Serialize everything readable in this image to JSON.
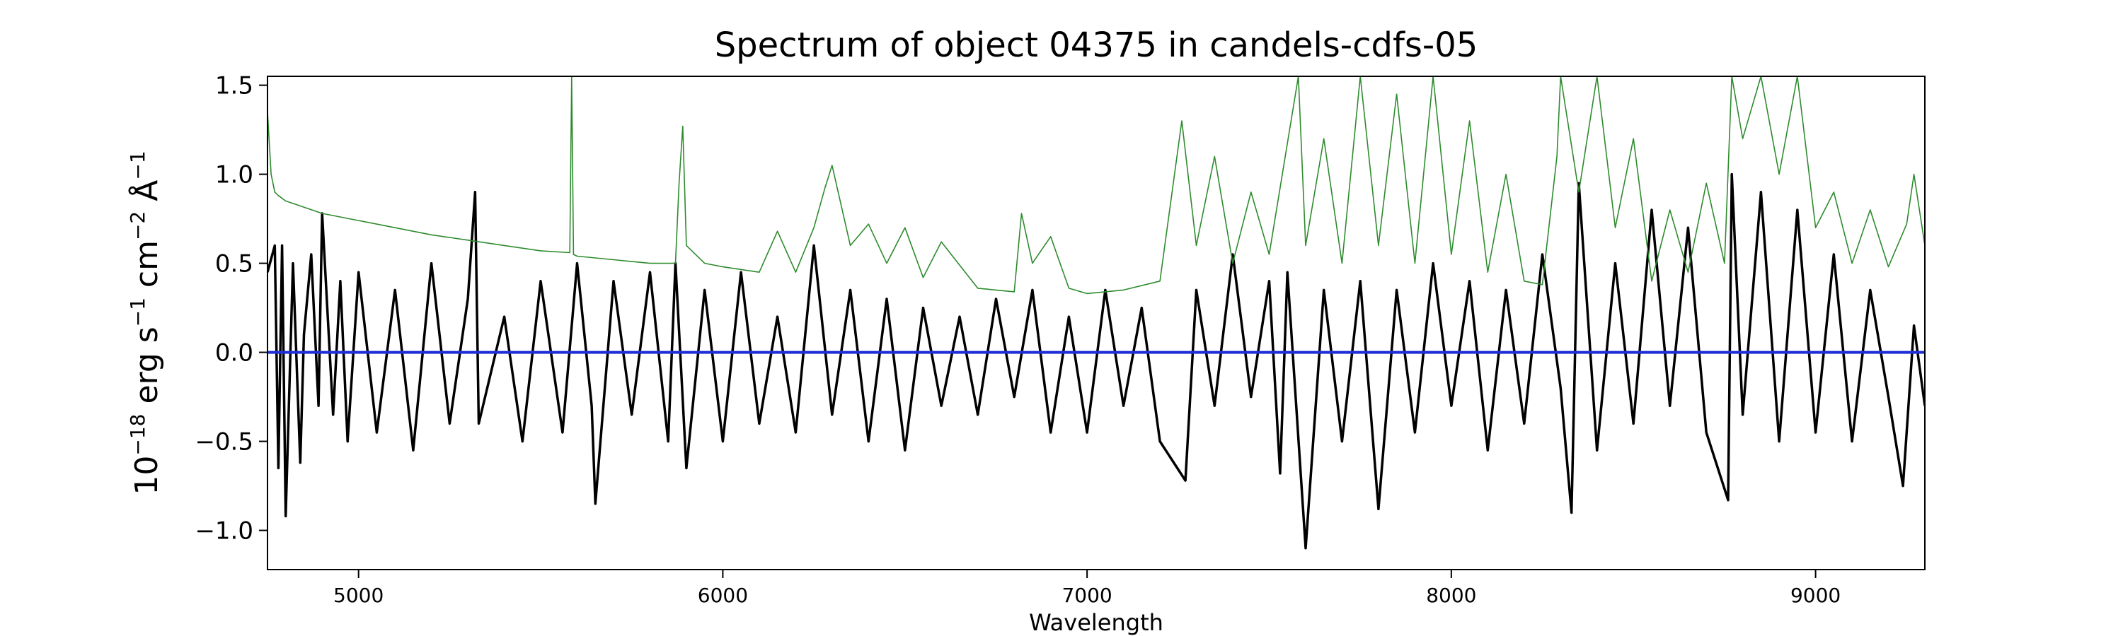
{
  "chart_data": {
    "type": "line",
    "title": "Spectrum of object 04375 in candels-cdfs-05",
    "xlabel": "Wavelength",
    "ylabel": {
      "base": "10",
      "exponent": "−18",
      "text1": " erg s",
      "exp1": "−1",
      "text2": " cm",
      "exp2": "−2",
      "text3": " Å",
      "exp3": "−1"
    },
    "xlim": [
      4750,
      9300
    ],
    "ylim": [
      -1.22,
      1.55
    ],
    "xticks": [
      5000,
      6000,
      7000,
      8000,
      9000
    ],
    "xtick_labels": [
      "5000",
      "6000",
      "7000",
      "8000",
      "9000"
    ],
    "yticks": [
      -1.0,
      -0.5,
      0.0,
      0.5,
      1.0,
      1.5
    ],
    "ytick_labels": [
      "−1.0",
      "−0.5",
      "0.0",
      "0.5",
      "1.0",
      "1.5"
    ],
    "grid": false,
    "series": [
      {
        "role": "flux",
        "color": "#000000",
        "x": [
          4750,
          4770,
          4780,
          4790,
          4800,
          4820,
          4840,
          4850,
          4870,
          4890,
          4900,
          4930,
          4950,
          4970,
          5000,
          5050,
          5100,
          5150,
          5200,
          5250,
          5300,
          5320,
          5330,
          5400,
          5450,
          5500,
          5560,
          5600,
          5640,
          5650,
          5700,
          5750,
          5800,
          5850,
          5870,
          5900,
          5950,
          6000,
          6050,
          6100,
          6150,
          6200,
          6250,
          6300,
          6350,
          6400,
          6450,
          6500,
          6550,
          6600,
          6650,
          6700,
          6750,
          6800,
          6850,
          6900,
          6950,
          7000,
          7050,
          7100,
          7150,
          7200,
          7270,
          7300,
          7350,
          7400,
          7450,
          7500,
          7530,
          7550,
          7600,
          7650,
          7700,
          7750,
          7800,
          7850,
          7900,
          7950,
          8000,
          8050,
          8100,
          8150,
          8200,
          8250,
          8300,
          8330,
          8350,
          8400,
          8450,
          8500,
          8550,
          8600,
          8650,
          8700,
          8760,
          8770,
          8800,
          8850,
          8900,
          8950,
          9000,
          9050,
          9100,
          9150,
          9200,
          9240,
          9270,
          9300
        ],
        "y": [
          0.45,
          0.6,
          -0.65,
          0.6,
          -0.92,
          0.5,
          -0.62,
          0.1,
          0.55,
          -0.3,
          0.78,
          -0.35,
          0.4,
          -0.5,
          0.45,
          -0.45,
          0.35,
          -0.55,
          0.5,
          -0.4,
          0.3,
          0.9,
          -0.4,
          0.2,
          -0.5,
          0.4,
          -0.45,
          0.5,
          -0.3,
          -0.85,
          0.4,
          -0.35,
          0.45,
          -0.5,
          0.5,
          -0.65,
          0.35,
          -0.5,
          0.45,
          -0.4,
          0.2,
          -0.45,
          0.6,
          -0.35,
          0.35,
          -0.5,
          0.3,
          -0.55,
          0.25,
          -0.3,
          0.2,
          -0.35,
          0.3,
          -0.25,
          0.35,
          -0.45,
          0.2,
          -0.45,
          0.35,
          -0.3,
          0.25,
          -0.5,
          -0.72,
          0.35,
          -0.3,
          0.55,
          -0.25,
          0.4,
          -0.68,
          0.45,
          -1.1,
          0.35,
          -0.5,
          0.4,
          -0.88,
          0.35,
          -0.45,
          0.5,
          -0.3,
          0.4,
          -0.55,
          0.35,
          -0.4,
          0.55,
          -0.2,
          -0.9,
          0.95,
          -0.55,
          0.5,
          -0.4,
          0.8,
          -0.3,
          0.7,
          -0.45,
          -0.83,
          1.0,
          -0.35,
          0.9,
          -0.5,
          0.8,
          -0.45,
          0.55,
          -0.5,
          0.35,
          -0.25,
          -0.75,
          0.15,
          -0.3
        ]
      },
      {
        "role": "error",
        "color": "#2e8b2e",
        "x": [
          4750,
          4760,
          4770,
          4780,
          4800,
          4900,
          5000,
          5100,
          5200,
          5300,
          5400,
          5500,
          5580,
          5585,
          5590,
          5600,
          5700,
          5800,
          5870,
          5880,
          5890,
          5900,
          5950,
          6000,
          6100,
          6150,
          6200,
          6250,
          6280,
          6300,
          6350,
          6400,
          6450,
          6500,
          6550,
          6600,
          6700,
          6800,
          6820,
          6850,
          6900,
          6950,
          7000,
          7100,
          7200,
          7260,
          7300,
          7350,
          7400,
          7450,
          7500,
          7580,
          7600,
          7650,
          7700,
          7750,
          7800,
          7850,
          7900,
          7950,
          8000,
          8050,
          8100,
          8150,
          8200,
          8250,
          8290,
          8300,
          8350,
          8400,
          8450,
          8500,
          8550,
          8600,
          8650,
          8700,
          8750,
          8770,
          8800,
          8850,
          8900,
          8950,
          9000,
          9050,
          9100,
          9150,
          9200,
          9250,
          9270,
          9300
        ],
        "y": [
          1.35,
          1.0,
          0.9,
          0.88,
          0.85,
          0.78,
          0.74,
          0.7,
          0.66,
          0.63,
          0.6,
          0.57,
          0.56,
          1.55,
          0.55,
          0.54,
          0.52,
          0.5,
          0.5,
          0.95,
          1.27,
          0.6,
          0.5,
          0.48,
          0.45,
          0.68,
          0.45,
          0.7,
          0.92,
          1.05,
          0.6,
          0.72,
          0.5,
          0.7,
          0.42,
          0.62,
          0.36,
          0.34,
          0.78,
          0.5,
          0.65,
          0.36,
          0.33,
          0.35,
          0.4,
          1.3,
          0.6,
          1.1,
          0.5,
          0.9,
          0.55,
          1.55,
          0.6,
          1.2,
          0.5,
          1.55,
          0.6,
          1.45,
          0.5,
          1.55,
          0.55,
          1.3,
          0.45,
          1.0,
          0.4,
          0.38,
          1.1,
          1.55,
          0.9,
          1.55,
          0.7,
          1.2,
          0.4,
          0.8,
          0.45,
          0.95,
          0.5,
          1.55,
          1.2,
          1.55,
          1.0,
          1.55,
          0.7,
          0.9,
          0.5,
          0.8,
          0.48,
          0.72,
          1.0,
          0.6
        ]
      },
      {
        "role": "zero",
        "color": "#1f2fd6",
        "x": [
          4750,
          9300
        ],
        "y": [
          0,
          0
        ]
      }
    ]
  }
}
